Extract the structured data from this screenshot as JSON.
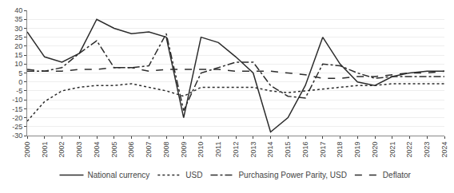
{
  "chart_data": {
    "type": "line",
    "x": [
      2000,
      2001,
      2002,
      2003,
      2004,
      2005,
      2006,
      2007,
      2008,
      2009,
      2010,
      2011,
      2012,
      2013,
      2014,
      2015,
      2016,
      2017,
      2018,
      2019,
      2020,
      2021,
      2022,
      2023,
      2024
    ],
    "series": [
      {
        "name": "National currency",
        "color": "#2c2c2c",
        "line_style": "solid",
        "values": [
          28,
          14,
          11,
          16,
          35,
          30,
          27,
          28,
          25,
          -20,
          25,
          22,
          14,
          5,
          -28,
          -20,
          -2,
          25,
          10,
          0,
          -2,
          3,
          5,
          6,
          6
        ]
      },
      {
        "name": "USD",
        "color": "#2c2c2c",
        "line_style": "dot",
        "values": [
          -22,
          -11,
          -5,
          -3,
          -2,
          -2,
          -1,
          -3,
          -5,
          -8,
          -3,
          -3,
          -3,
          -3,
          -5,
          -6,
          -5,
          -4,
          -3,
          -2,
          -2,
          -1,
          -1,
          -1,
          -1
        ]
      },
      {
        "name": "Purchasing Power Parity, USD",
        "color": "#2c2c2c",
        "line_style": "dashdot",
        "values": [
          6,
          6,
          8,
          16,
          23,
          8,
          8,
          9,
          27,
          -16,
          5,
          8,
          11,
          11,
          -2,
          -8,
          -9,
          10,
          9,
          5,
          2,
          3,
          3,
          3,
          3
        ]
      },
      {
        "name": "Deflator",
        "color": "#2c2c2c",
        "line_style": "dash",
        "values": [
          7,
          6,
          6,
          7,
          7,
          8,
          8,
          6,
          7,
          7,
          7,
          7,
          6,
          6,
          6,
          5,
          4,
          2,
          2,
          3,
          3,
          4,
          5,
          5,
          6
        ]
      }
    ],
    "xlim": [
      2000,
      2024
    ],
    "xticks": [
      2000,
      2001,
      2002,
      2003,
      2004,
      2005,
      2006,
      2007,
      2008,
      2009,
      2010,
      2011,
      2012,
      2013,
      2014,
      2015,
      2016,
      2017,
      2018,
      2019,
      2020,
      2021,
      2022,
      2023,
      2024
    ],
    "ylim": [
      -30,
      40
    ],
    "yticks": [
      -30,
      -25,
      -20,
      -15,
      -10,
      -5,
      0,
      5,
      10,
      15,
      20,
      25,
      30,
      35,
      40
    ],
    "grid": "y",
    "legend": "bottom"
  }
}
